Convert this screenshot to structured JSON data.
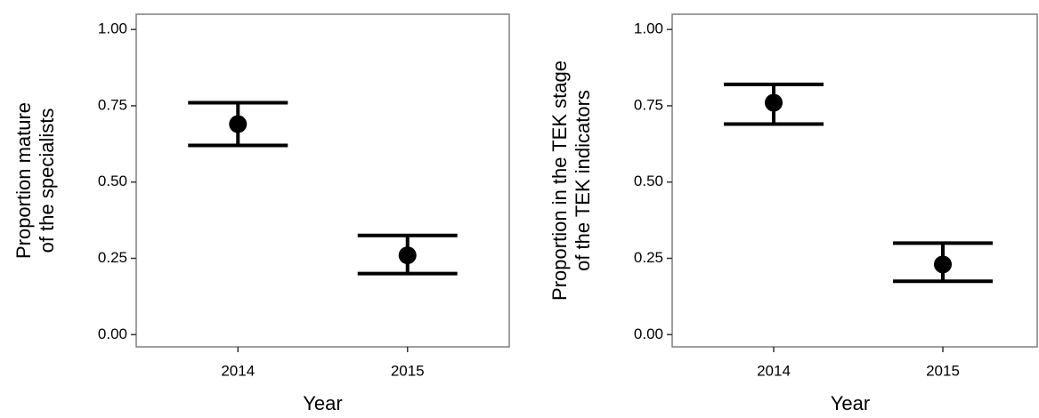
{
  "chart_data": [
    {
      "type": "errorbar",
      "xlabel": "Year",
      "ylabel": [
        "Proportion mature",
        "of the specialists"
      ],
      "categories": [
        "2014",
        "2015"
      ],
      "values": [
        0.69,
        0.26
      ],
      "lower": [
        0.62,
        0.2
      ],
      "upper": [
        0.76,
        0.325
      ],
      "color": "#000000",
      "ylim": [
        -0.04,
        1.05
      ],
      "yticks": [
        {
          "value": 0,
          "label": "0.00"
        },
        {
          "value": 0.25,
          "label": "0.25"
        },
        {
          "value": 0.5,
          "label": "0.50"
        },
        {
          "value": 0.75,
          "label": "0.75"
        },
        {
          "value": 1,
          "label": "1.00"
        }
      ]
    },
    {
      "type": "errorbar",
      "xlabel": "Year",
      "ylabel": [
        "Proportion in the TEK stage",
        "of the TEK indicators"
      ],
      "categories": [
        "2014",
        "2015"
      ],
      "values": [
        0.76,
        0.23
      ],
      "lower": [
        0.69,
        0.175
      ],
      "upper": [
        0.82,
        0.3
      ],
      "color": "#000000",
      "ylim": [
        -0.04,
        1.05
      ],
      "yticks": [
        {
          "value": 0,
          "label": "0.00"
        },
        {
          "value": 0.25,
          "label": "0.25"
        },
        {
          "value": 0.5,
          "label": "0.50"
        },
        {
          "value": 0.75,
          "label": "0.75"
        },
        {
          "value": 1,
          "label": "1.00"
        }
      ]
    }
  ]
}
